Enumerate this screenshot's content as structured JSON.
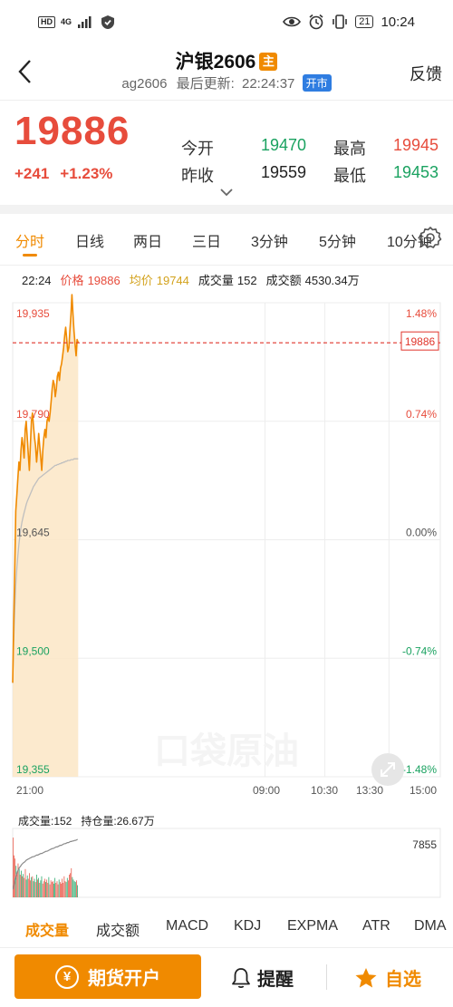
{
  "status": {
    "time": "10:24",
    "network": "4G",
    "battery": "21"
  },
  "header": {
    "title": "沪银2606",
    "main_badge": "主",
    "code": "ag2606",
    "update_label": "最后更新:",
    "update_time": "22:24:37",
    "open_badge": "开市",
    "feedback": "反馈"
  },
  "quote": {
    "last": "19886",
    "change": "+241",
    "change_pct": "+1.23%",
    "open_label": "今开",
    "open": "19470",
    "high_label": "最高",
    "high": "19945",
    "prev_label": "昨收",
    "prev": "19559",
    "low_label": "最低",
    "low": "19453"
  },
  "tabs": [
    {
      "label": "分时"
    },
    {
      "label": "日线"
    },
    {
      "label": "两日"
    },
    {
      "label": "三日"
    },
    {
      "label": "3分钟"
    },
    {
      "label": "5分钟"
    },
    {
      "label": "10分钟"
    }
  ],
  "info": {
    "time": "22:24",
    "price_label": "价格",
    "price": "19886",
    "avg_label": "均价",
    "avg": "19744",
    "vol_label": "成交量",
    "vol": "152",
    "amt_label": "成交额",
    "amt": "4530.34万"
  },
  "watermark": "口袋原油",
  "colors": {
    "accent": "#f08a00",
    "up": "#e74c3c",
    "down": "#1aa260",
    "avg_line": "#bfbfbf",
    "fill": "#fbe6c6"
  },
  "chart_data": {
    "type": "line",
    "y_ticks": [
      "19,935",
      "19,790",
      "19,645",
      "19,500",
      "19,355"
    ],
    "y_tick_values": [
      19935,
      19790,
      19645,
      19500,
      19355
    ],
    "pct_ticks": [
      "1.48%",
      "0.74%",
      "0.00%",
      "-0.74%",
      "-1.48%"
    ],
    "x_ticks": [
      "21:00",
      "09:00",
      "10:30",
      "13:30",
      "15:00"
    ],
    "ylim": [
      19355,
      19935
    ],
    "current_tag": "19886",
    "reference_price": 19645,
    "session_minutes": 555,
    "elapsed_minutes": 85,
    "series": [
      {
        "name": "价格",
        "values": [
          19470,
          19540,
          19610,
          19680,
          19700,
          19720,
          19740,
          19730,
          19755,
          19770,
          19760,
          19745,
          19780,
          19790,
          19770,
          19750,
          19730,
          19760,
          19790,
          19800,
          19785,
          19770,
          19760,
          19740,
          19755,
          19775,
          19760,
          19745,
          19730,
          19755,
          19770,
          19780,
          19770,
          19790,
          19795,
          19790,
          19800,
          19815,
          19830,
          19840,
          19835,
          19820,
          19830,
          19845,
          19850,
          19840,
          19855,
          19860,
          19870,
          19880,
          19895,
          19905,
          19890,
          19875,
          19880,
          19900,
          19920,
          19945,
          19920,
          19900,
          19885,
          19870,
          19890,
          19886
        ]
      },
      {
        "name": "均价",
        "values": [
          19470,
          19520,
          19560,
          19590,
          19610,
          19625,
          19640,
          19650,
          19660,
          19667,
          19673,
          19678,
          19683,
          19688,
          19692,
          19695,
          19698,
          19701,
          19704,
          19707,
          19710,
          19712,
          19714,
          19716,
          19718,
          19720,
          19721,
          19722,
          19723,
          19724,
          19725,
          19726,
          19727,
          19728,
          19729,
          19730,
          19731,
          19732,
          19733,
          19734,
          19735,
          19736,
          19736,
          19737,
          19737,
          19738,
          19738,
          19739,
          19739,
          19740,
          19740,
          19741,
          19741,
          19742,
          19742,
          19742,
          19743,
          19743,
          19743,
          19744,
          19744,
          19744,
          19744,
          19744
        ]
      }
    ]
  },
  "volume": {
    "vol_label": "成交量:152",
    "oi_label": "持仓量:26.67万",
    "max_label": "7855",
    "max_value": 7855,
    "bars": [
      7400,
      5200,
      4800,
      3900,
      3100,
      4200,
      3600,
      2800,
      3300,
      2600,
      2900,
      2400,
      3500,
      2200,
      2700,
      2300,
      3000,
      2100,
      2500,
      2600,
      2000,
      2300,
      1900,
      2800,
      2200,
      2400,
      1800,
      2100,
      2600,
      1700,
      2000,
      2300,
      1900,
      2200,
      1800,
      2500,
      1600,
      2100,
      1900,
      2000,
      1700,
      2400,
      1800,
      2000,
      1600,
      2200,
      1900,
      1700,
      2300,
      1800,
      2600,
      2000,
      1900,
      2400,
      2100,
      2800,
      3000,
      3600,
      2500,
      2200,
      2000,
      1900,
      2100,
      1500
    ],
    "bar_dirs": [
      1,
      1,
      1,
      0,
      1,
      1,
      0,
      1,
      0,
      1,
      0,
      1,
      1,
      0,
      0,
      1,
      1,
      1,
      0,
      1,
      0,
      0,
      1,
      0,
      1,
      0,
      1,
      0,
      0,
      1,
      1,
      1,
      0,
      1,
      1,
      0,
      1,
      1,
      1,
      1,
      0,
      0,
      1,
      1,
      1,
      0,
      1,
      1,
      1,
      1,
      1,
      1,
      0,
      0,
      1,
      1,
      1,
      1,
      0,
      0,
      0,
      0,
      1,
      0
    ],
    "oi_line": [
      0.08,
      0.18,
      0.28,
      0.34,
      0.4,
      0.44,
      0.48,
      0.5,
      0.53,
      0.55,
      0.57,
      0.58,
      0.6,
      0.62,
      0.63,
      0.64,
      0.65,
      0.66,
      0.67,
      0.68,
      0.68,
      0.69,
      0.7,
      0.71,
      0.71,
      0.72,
      0.73,
      0.74,
      0.74,
      0.75,
      0.76,
      0.77,
      0.78,
      0.78,
      0.79,
      0.8,
      0.81,
      0.82,
      0.83,
      0.83,
      0.84,
      0.85,
      0.86,
      0.86,
      0.87,
      0.88,
      0.89,
      0.89,
      0.9,
      0.91,
      0.92,
      0.92,
      0.93,
      0.94,
      0.94,
      0.95,
      0.96,
      0.96,
      0.97,
      0.97,
      0.98,
      0.98,
      0.99,
      1.0
    ]
  },
  "indicator_tabs": [
    {
      "label": "成交量"
    },
    {
      "label": "成交额"
    },
    {
      "label": "MACD"
    },
    {
      "label": "KDJ"
    },
    {
      "label": "EXPMA"
    },
    {
      "label": "ATR"
    },
    {
      "label": "DMA"
    }
  ],
  "bottom": {
    "open_account": "期货开户",
    "yen": "¥",
    "remind": "提醒",
    "favorite": "自选"
  }
}
